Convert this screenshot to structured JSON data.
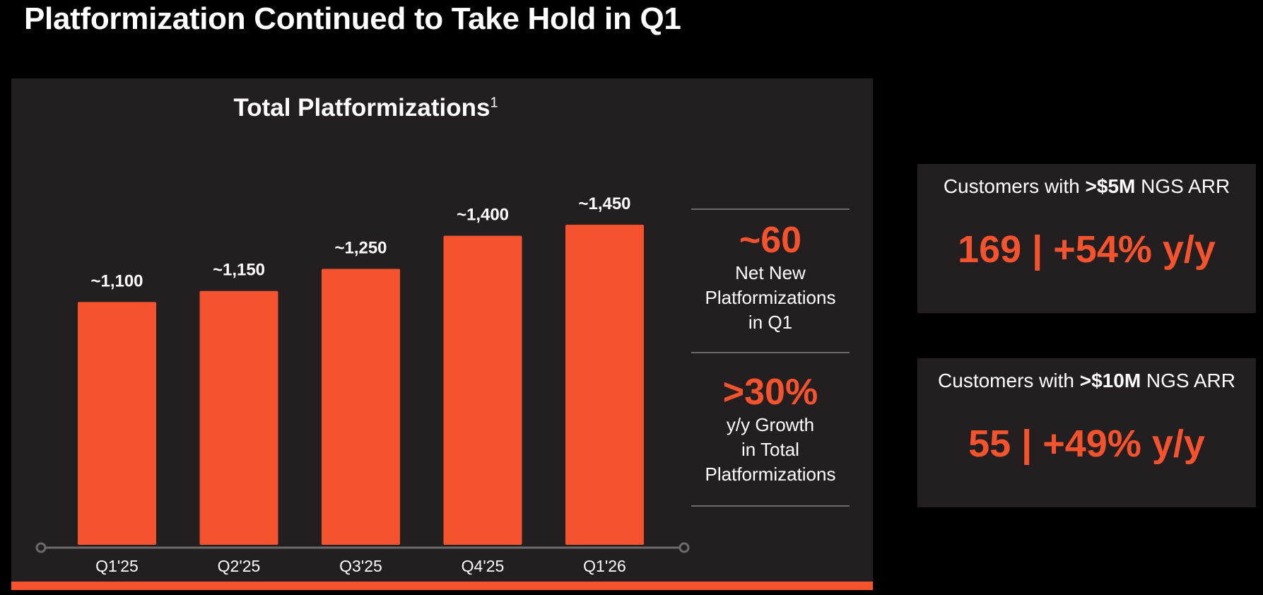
{
  "page": {
    "title": "Platformization Continued to Take Hold in Q1"
  },
  "chart_data": {
    "type": "bar",
    "title": "Total Platformizations",
    "title_footnote": "1",
    "categories": [
      "Q1'25",
      "Q2'25",
      "Q3'25",
      "Q4'25",
      "Q1'26"
    ],
    "values": [
      1100,
      1150,
      1250,
      1400,
      1450
    ],
    "data_labels": [
      "~1,100",
      "~1,150",
      "~1,250",
      "~1,400",
      "~1,450"
    ],
    "xlabel": "",
    "ylabel": "",
    "ylim": [
      0,
      1450
    ],
    "grid": false,
    "legend": "none",
    "colors": {
      "bar": "#f5522e",
      "axis": "#6d6a6b",
      "panel": "#231f20"
    }
  },
  "stats": [
    {
      "value": "~60",
      "lines": [
        "Net New",
        "Platformizations",
        "in Q1"
      ]
    },
    {
      "value": ">30%",
      "lines": [
        "y/y Growth",
        "in Total",
        "Platformizations"
      ]
    }
  ],
  "kpis": [
    {
      "caption_pre": "Customers with ",
      "caption_bold": ">$5M",
      "caption_post": " NGS ARR",
      "value": "169 | +54% y/y"
    },
    {
      "caption_pre": "Customers with ",
      "caption_bold": ">$10M",
      "caption_post": " NGS ARR",
      "value": "55 | +49% y/y"
    }
  ],
  "colors": {
    "accent": "#f5522e",
    "background": "#000000",
    "panel": "#231f20"
  }
}
